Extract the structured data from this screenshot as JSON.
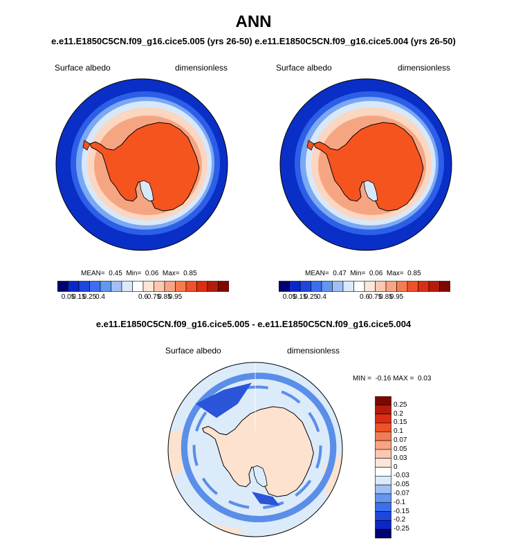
{
  "title": "ANN",
  "subtitle": "e.e11.E1850C5CN.f09_g16.cice5.005 (yrs 26-50)  e.e11.E1850C5CN.f09_g16.cice5.004 (yrs 26-50)",
  "panels": [
    {
      "variable": "Surface albedo",
      "units": "dimensionless",
      "mean_label": "MEAN=",
      "mean": "0.45",
      "min_label": "Min=",
      "min": "0.06",
      "max_label": "Max=",
      "max": "0.85"
    },
    {
      "variable": "Surface albedo",
      "units": "dimensionless",
      "mean_label": "MEAN=",
      "mean": "0.47",
      "min_label": "Min=",
      "min": "0.06",
      "max_label": "Max=",
      "max": "0.85"
    }
  ],
  "colorbar_abs": {
    "colors": [
      "#00006e",
      "#0a28c8",
      "#1e46dc",
      "#3c6ef0",
      "#6496f0",
      "#a0c0f5",
      "#dce9fb",
      "#ffffff",
      "#fde6d8",
      "#fcc8b0",
      "#f9a482",
      "#f57c52",
      "#f0502a",
      "#dc2d14",
      "#b41c0a",
      "#7d0800"
    ],
    "tick_labels": [
      "0.05",
      "0.15",
      "0.25",
      "0.4",
      "0.6",
      "0.75",
      "0.85",
      "0.95"
    ]
  },
  "difference": {
    "title": "e.e11.E1850C5CN.f09_g16.cice5.005 - e.e11.E1850C5CN.f09_g16.cice5.004",
    "variable": "Surface albedo",
    "units": "dimensionless",
    "min_label": "MIN =",
    "min": "-0.16",
    "max_label": "MAX =",
    "max": "0.03"
  },
  "colorbar_diff": {
    "colors": [
      "#7d0800",
      "#b41c0a",
      "#dc2d14",
      "#f0502a",
      "#f57c52",
      "#f9a482",
      "#fcc8b0",
      "#fde6d8",
      "#ffffff",
      "#dce9fb",
      "#a0c0f5",
      "#6496f0",
      "#3c6ef0",
      "#1e46dc",
      "#0a28c8",
      "#00006e"
    ],
    "tick_labels": [
      "0.25",
      "0.2",
      "0.15",
      "0.1",
      "0.07",
      "0.05",
      "0.03",
      "0",
      "-0.03",
      "-0.05",
      "-0.07",
      "-0.1",
      "-0.15",
      "-0.2",
      "-0.25"
    ]
  },
  "map_colors": {
    "ocean_deep": "#0a2fc6",
    "ocean_mid": "#2d5ee8",
    "ocean_light": "#7aa8f2",
    "seaice_pale": "#d8e8fb",
    "seaice_peach": "#fbd6c1",
    "seaice_salmon": "#f6a583",
    "ice_sheet": "#f5541f",
    "coast": "#000000",
    "diff_bg": "#dcebfa",
    "diff_blue": "#5a8ee8",
    "diff_dark": "#2a55d8",
    "diff_peach": "#fde2cf"
  }
}
